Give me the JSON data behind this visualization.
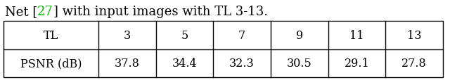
{
  "caption_before_ref": "Net [",
  "caption_ref_text": "27",
  "caption_after_ref": "] with input images with TL 3-13.",
  "caption_ref_color": "#00bb00",
  "caption_color_normal": "#000000",
  "col_headers": [
    "TL",
    "3",
    "5",
    "7",
    "9",
    "11",
    "13"
  ],
  "row_label": "PSNR (dB)",
  "row_values": [
    "37.8",
    "34.4",
    "32.3",
    "30.5",
    "29.1",
    "27.8"
  ],
  "font_size": 11.5,
  "caption_font_size": 13,
  "bg_color": "#ffffff",
  "border_color": "#000000",
  "text_color": "#000000",
  "col_widths_rel": [
    1.65,
    1.0,
    1.0,
    1.0,
    1.0,
    1.0,
    1.0
  ]
}
